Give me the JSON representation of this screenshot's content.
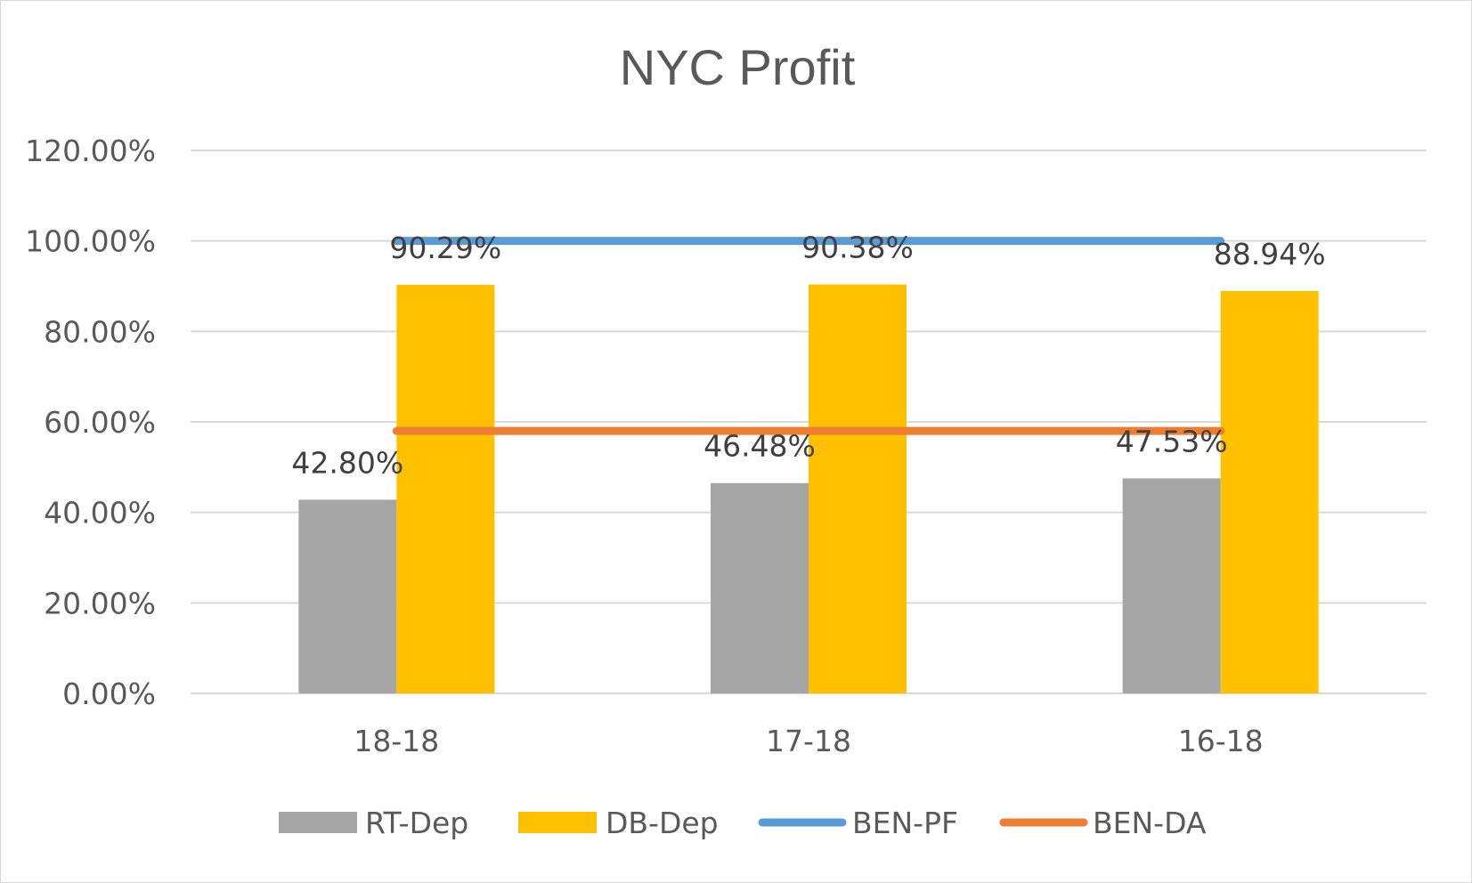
{
  "chart_data": {
    "type": "bar",
    "title": "NYC Profit",
    "categories": [
      "18-18",
      "17-18",
      "16-18"
    ],
    "ylim": [
      0,
      1.2
    ],
    "yticks": [
      0,
      0.2,
      0.4,
      0.6,
      0.8,
      1.0,
      1.2
    ],
    "ytick_labels": [
      "0.00%",
      "20.00%",
      "40.00%",
      "60.00%",
      "80.00%",
      "100.00%",
      "120.00%"
    ],
    "grid": true,
    "legend_position": "bottom",
    "series": [
      {
        "name": "RT-Dep",
        "kind": "bar",
        "color": "#a5a5a5",
        "values": [
          0.428,
          0.4648,
          0.4753
        ],
        "labels": [
          "42.80%",
          "46.48%",
          "47.53%"
        ]
      },
      {
        "name": "DB-Dep",
        "kind": "bar",
        "color": "#ffc000",
        "values": [
          0.9029,
          0.9038,
          0.8894
        ],
        "labels": [
          "90.29%",
          "90.38%",
          "88.94%"
        ]
      },
      {
        "name": "BEN-PF",
        "kind": "line",
        "color": "#5b9bd5",
        "values": [
          1.0,
          1.0,
          1.0
        ]
      },
      {
        "name": "BEN-DA",
        "kind": "line",
        "color": "#ed7d31",
        "values": [
          0.58,
          0.58,
          0.58
        ]
      }
    ]
  }
}
